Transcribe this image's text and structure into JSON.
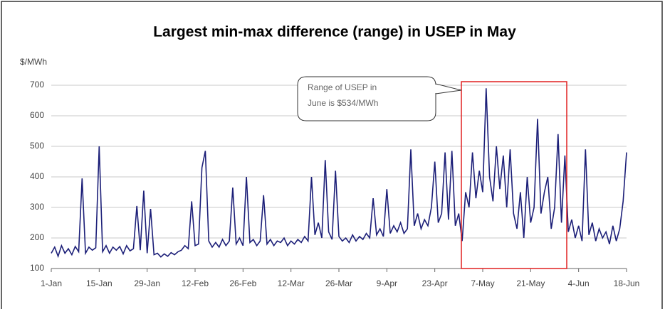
{
  "chart_data": {
    "type": "line",
    "title": "Largest min-max difference (range) in USEP in May",
    "y_label": "$/MWh",
    "annotation": [
      "Range of USEP in",
      "June is $534/MWh"
    ],
    "x": [
      0,
      1,
      2,
      3,
      4,
      5,
      6,
      7,
      8,
      9,
      10,
      11,
      12,
      13,
      14,
      15,
      16,
      17,
      18,
      19,
      20,
      21,
      22,
      23,
      24,
      25,
      26,
      27,
      28,
      29,
      30,
      31,
      32,
      33,
      34,
      35,
      36,
      37,
      38,
      39,
      40,
      41,
      42,
      43,
      44,
      45,
      46,
      47,
      48,
      49,
      50,
      51,
      52,
      53,
      54,
      55,
      56,
      57,
      58,
      59,
      60,
      61,
      62,
      63,
      64,
      65,
      66,
      67,
      68,
      69,
      70,
      71,
      72,
      73,
      74,
      75,
      76,
      77,
      78,
      79,
      80,
      81,
      82,
      83,
      84,
      85,
      86,
      87,
      88,
      89,
      90,
      91,
      92,
      93,
      94,
      95,
      96,
      97,
      98,
      99,
      100,
      101,
      102,
      103,
      104,
      105,
      106,
      107,
      108,
      109,
      110,
      111,
      112,
      113,
      114,
      115,
      116,
      117,
      118,
      119,
      120,
      121,
      122,
      123,
      124,
      125,
      126,
      127,
      128,
      129,
      130,
      131,
      132,
      133,
      134,
      135,
      136,
      137,
      138,
      139,
      140,
      141,
      142,
      143,
      144,
      145,
      146,
      147,
      148,
      149,
      150,
      151,
      152,
      153,
      154,
      155,
      156,
      157,
      158,
      159,
      160,
      161,
      162,
      163,
      164,
      165,
      166,
      167,
      168
    ],
    "series": [
      {
        "name": "USEP",
        "color": "#1c1f78",
        "values": [
          150,
          170,
          140,
          175,
          150,
          165,
          145,
          172,
          155,
          395,
          150,
          170,
          160,
          168,
          500,
          155,
          175,
          150,
          170,
          160,
          172,
          148,
          175,
          158,
          165,
          305,
          160,
          355,
          150,
          295,
          145,
          150,
          138,
          148,
          140,
          152,
          145,
          155,
          160,
          175,
          165,
          320,
          175,
          180,
          430,
          485,
          190,
          170,
          185,
          170,
          195,
          175,
          190,
          365,
          180,
          200,
          175,
          400,
          185,
          195,
          175,
          190,
          340,
          180,
          195,
          175,
          190,
          185,
          200,
          175,
          190,
          180,
          195,
          185,
          205,
          190,
          400,
          210,
          250,
          200,
          455,
          220,
          195,
          420,
          205,
          190,
          200,
          185,
          210,
          190,
          205,
          195,
          215,
          200,
          330,
          210,
          230,
          205,
          360,
          215,
          240,
          220,
          250,
          215,
          230,
          490,
          240,
          280,
          230,
          260,
          240,
          300,
          450,
          250,
          280,
          480,
          260,
          485,
          240,
          280,
          190,
          350,
          300,
          480,
          330,
          420,
          350,
          690,
          400,
          320,
          500,
          360,
          470,
          300,
          490,
          280,
          230,
          350,
          200,
          400,
          250,
          300,
          590,
          280,
          350,
          400,
          230,
          300,
          540,
          250,
          470,
          220,
          260,
          200,
          240,
          190,
          490,
          210,
          250,
          190,
          230,
          200,
          220,
          180,
          240,
          190,
          230,
          320,
          480
        ]
      }
    ],
    "xlim": [
      0,
      168
    ],
    "xticks": [
      {
        "value": 0,
        "label": "1-Jan"
      },
      {
        "value": 14,
        "label": "15-Jan"
      },
      {
        "value": 28,
        "label": "29-Jan"
      },
      {
        "value": 42,
        "label": "12-Feb"
      },
      {
        "value": 56,
        "label": "26-Feb"
      },
      {
        "value": 70,
        "label": "12-Mar"
      },
      {
        "value": 84,
        "label": "26-Mar"
      },
      {
        "value": 98,
        "label": "9-Apr"
      },
      {
        "value": 112,
        "label": "23-Apr"
      },
      {
        "value": 126,
        "label": "7-May"
      },
      {
        "value": 140,
        "label": "21-May"
      },
      {
        "value": 154,
        "label": "4-Jun"
      },
      {
        "value": 168,
        "label": "18-Jun"
      }
    ],
    "ylim": [
      100,
      700
    ],
    "yticks": [
      100,
      200,
      300,
      400,
      500,
      600,
      700
    ],
    "grid": true
  }
}
